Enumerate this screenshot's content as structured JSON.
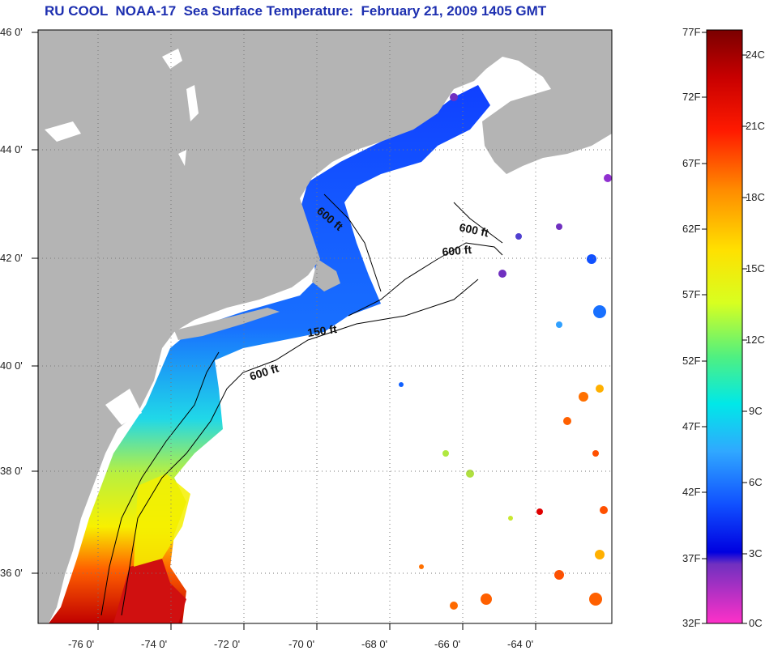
{
  "title": "RU COOL  NOAA-17  Sea Surface Temperature:  February 21, 2009 1405 GMT",
  "map": {
    "lon_ticks": [
      "-76 0'",
      "-74 0'",
      "-72 0'",
      "-70 0'",
      "-68 0'",
      "-66 0'",
      "-64 0'"
    ],
    "lat_ticks": [
      "46 0'",
      "44 0'",
      "42 0'",
      "40 0'",
      "38 0'",
      "36 0'"
    ],
    "contour_labels": [
      "600 ft",
      "600 ft",
      "600 ft",
      "150 ft",
      "600 ft"
    ],
    "land_color": "#b4b4b4",
    "ocean_color": "#ffffff"
  },
  "colorbar": {
    "fahrenheit_labels": [
      "77F",
      "72F",
      "67F",
      "62F",
      "57F",
      "52F",
      "47F",
      "42F",
      "37F",
      "32F"
    ],
    "celsius_labels": [
      "24C",
      "21C",
      "18C",
      "15C",
      "12C",
      "9C",
      "6C",
      "3C",
      "0C"
    ]
  }
}
